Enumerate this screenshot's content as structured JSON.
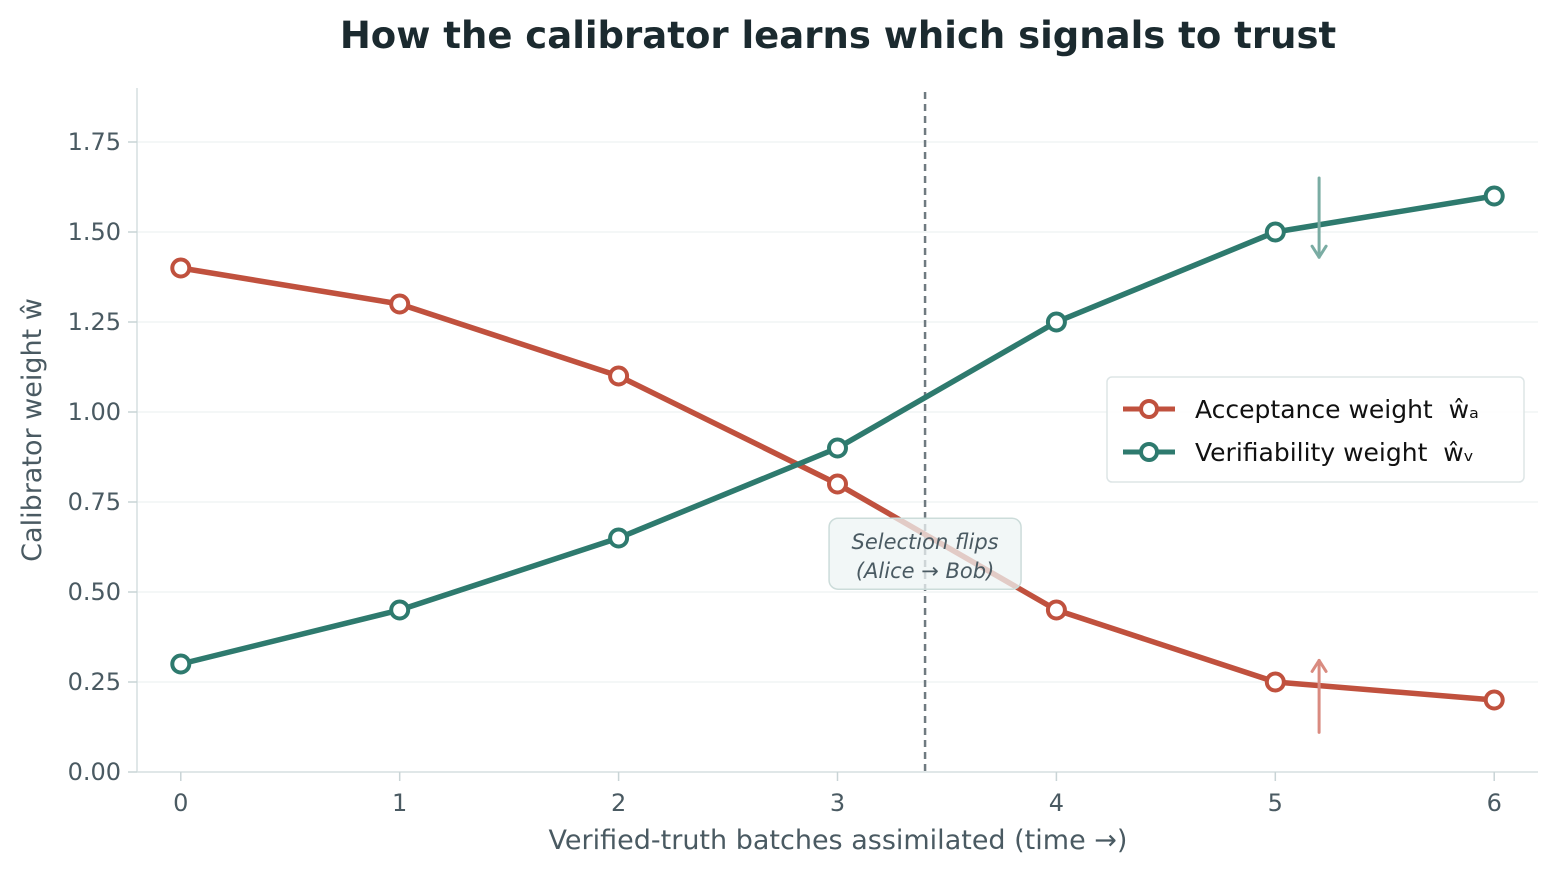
{
  "chart_data": {
    "type": "line",
    "title": "How the calibrator learns which signals to trust",
    "xlabel": "Verified-truth batches assimilated  (time →)",
    "ylabel": "Calibrator weight  ŵ",
    "x": [
      0,
      1,
      2,
      3,
      4,
      5,
      6
    ],
    "xlim": [
      -0.2,
      6.2
    ],
    "ylim": [
      0,
      1.9
    ],
    "xticks": [
      "0",
      "1",
      "2",
      "3",
      "4",
      "5",
      "6"
    ],
    "yticks": [
      "0.00",
      "0.25",
      "0.50",
      "0.75",
      "1.00",
      "1.25",
      "1.50",
      "1.75"
    ],
    "grid": "horizontal",
    "legend_position": "center-right",
    "series": [
      {
        "name": "Acceptance weight  ŵₐ",
        "color": "#c0513e",
        "values": [
          1.4,
          1.3,
          1.1,
          0.8,
          0.45,
          0.25,
          0.2
        ]
      },
      {
        "name": "Verifiability weight  ŵᵥ",
        "color": "#2e7a6e",
        "values": [
          0.3,
          0.45,
          0.65,
          0.9,
          1.25,
          1.5,
          1.6
        ]
      }
    ],
    "vline": {
      "x": 3.4,
      "color": "#6f7a80"
    },
    "annotation": {
      "x": 3.4,
      "y": 0.58,
      "lines": [
        "Selection flips",
        "(Alice → Bob)"
      ]
    },
    "arrows": [
      {
        "x": 5.2,
        "from": 1.65,
        "to": 1.43,
        "color": "#7aaca3",
        "direction": "down"
      },
      {
        "x": 5.2,
        "from": 0.11,
        "to": 0.31,
        "color": "#d98b80",
        "direction": "up"
      }
    ]
  }
}
